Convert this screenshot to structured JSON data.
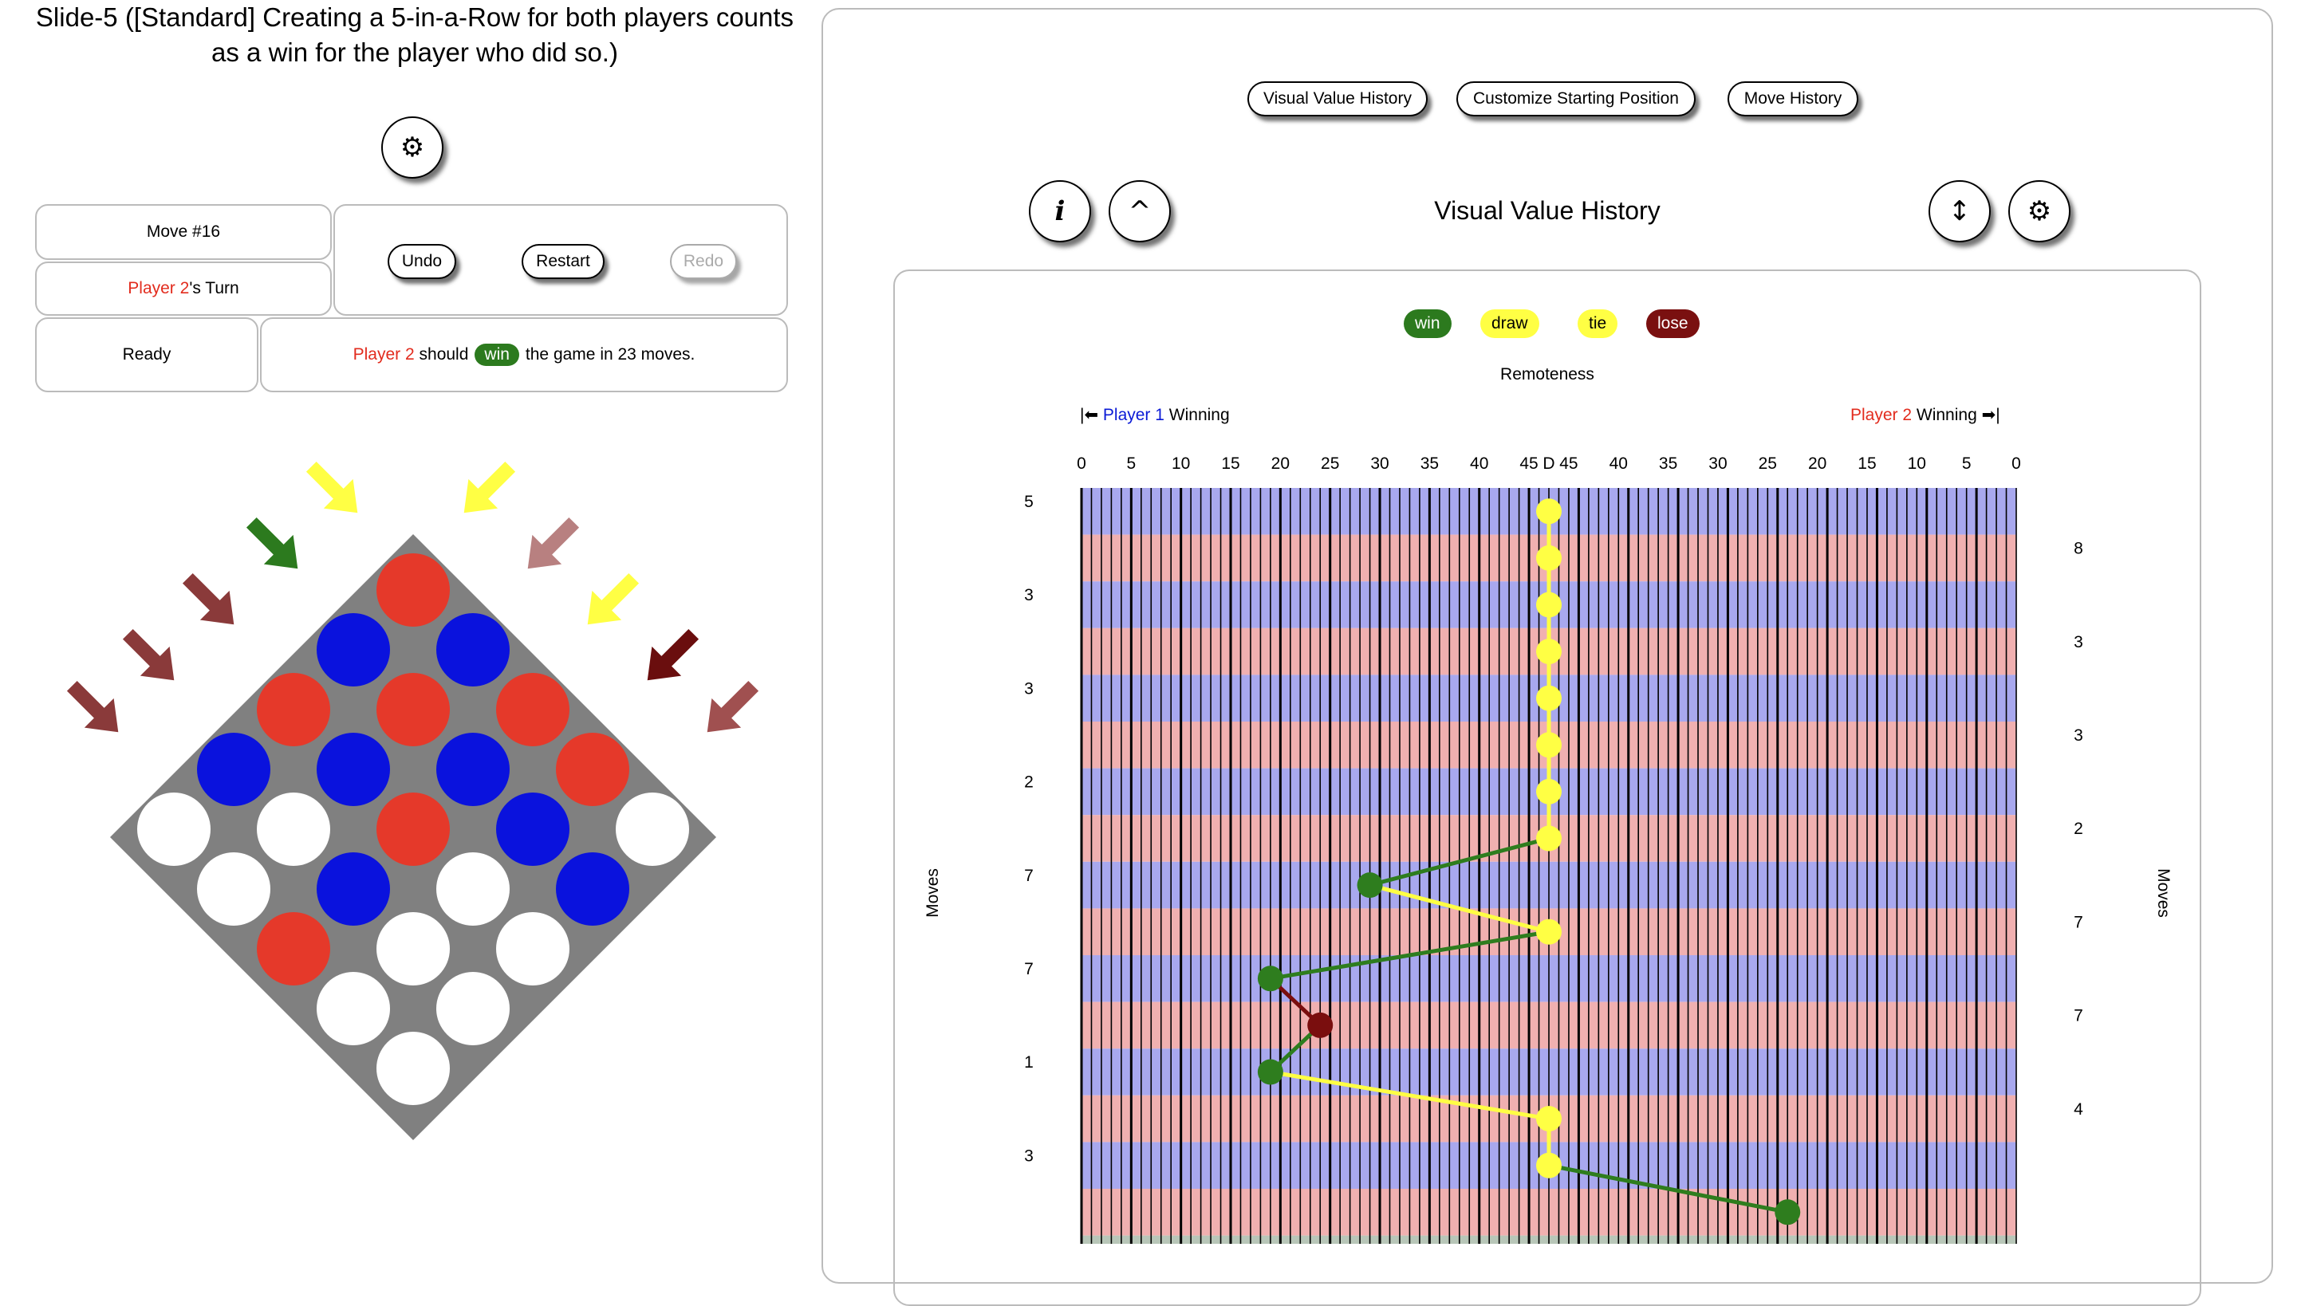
{
  "title": "Slide-5 ([Standard] Creating a 5-in-a-Row for both players counts as a win for the player who did so.)",
  "icons": {
    "settings": "⚙",
    "info": "𝒊",
    "collapse": "^",
    "flip": "↕"
  },
  "status": {
    "move": "Move #16",
    "turn_player": "Player 2",
    "turn_suffix": "'s Turn",
    "ready": "Ready",
    "pred_player": "Player 2",
    "pred_should": "should",
    "pred_value": "win",
    "pred_rest": "the game in 23 moves."
  },
  "controls": {
    "undo": "Undo",
    "restart": "Restart",
    "redo": "Redo"
  },
  "tabs": [
    "Visual Value History",
    "Customize Starting Position",
    "Move History"
  ],
  "vvh": {
    "heading": "Visual Value History",
    "legend": [
      {
        "label": "win",
        "bg": "#2c7a1e",
        "fg": "#ffffff"
      },
      {
        "label": "draw",
        "bg": "#ffff44",
        "fg": "#000000"
      },
      {
        "label": "tie",
        "bg": "#ffff44",
        "fg": "#000000"
      },
      {
        "label": "lose",
        "bg": "#7a1010",
        "fg": "#ffffff"
      }
    ],
    "remoteness_label": "Remoteness",
    "p1_label": "Player 1",
    "p2_label": "Player 2",
    "winning_label": "Winning",
    "left_arrow": "|⬅",
    "right_arrow": "➡|",
    "x_ticks": [
      "0",
      "5",
      "10",
      "15",
      "20",
      "25",
      "30",
      "35",
      "40",
      "45",
      "D",
      "45",
      "40",
      "35",
      "30",
      "25",
      "20",
      "15",
      "10",
      "5",
      "0"
    ],
    "left_moves": [
      "5",
      "3",
      "3",
      "2",
      "7",
      "7",
      "1",
      "3"
    ],
    "right_moves": [
      "8",
      "3",
      "3",
      "2",
      "7",
      "7",
      "4"
    ],
    "moves_label": "Moves"
  },
  "chart_data": {
    "type": "scatter",
    "title": "Visual Value History",
    "xlabel": "Remoteness",
    "ylabel": "Moves",
    "x_axis": "remoteness, left half = Player 1 winning (0..45), center D = draw, right half = Player 2 winning (45..0)",
    "positions": [
      {
        "row": 1,
        "value": "draw",
        "remoteness": "D"
      },
      {
        "row": 2,
        "value": "draw",
        "remoteness": "D"
      },
      {
        "row": 3,
        "value": "draw",
        "remoteness": "D"
      },
      {
        "row": 4,
        "value": "draw",
        "remoteness": "D"
      },
      {
        "row": 5,
        "value": "draw",
        "remoteness": "D"
      },
      {
        "row": 6,
        "value": "draw",
        "remoteness": "D"
      },
      {
        "row": 7,
        "value": "draw",
        "remoteness": "D"
      },
      {
        "row": 8,
        "value": "draw",
        "remoteness": "D"
      },
      {
        "row": 9,
        "value": "win",
        "side": "P1",
        "remoteness": 29
      },
      {
        "row": 10,
        "value": "draw",
        "remoteness": "D"
      },
      {
        "row": 11,
        "value": "win",
        "side": "P1",
        "remoteness": 19
      },
      {
        "row": 12,
        "value": "lose",
        "side": "P1",
        "remoteness": 24
      },
      {
        "row": 13,
        "value": "win",
        "side": "P1",
        "remoteness": 19
      },
      {
        "row": 14,
        "value": "draw",
        "remoteness": "D"
      },
      {
        "row": 15,
        "value": "draw",
        "remoteness": "D"
      },
      {
        "row": 16,
        "value": "win",
        "side": "P2",
        "remoteness": 23
      }
    ],
    "grid": true
  },
  "board": {
    "cells": [
      "red",
      "blue",
      "blue",
      "red",
      "red",
      "red",
      "blue",
      "blue",
      "blue",
      "red",
      "white",
      "white",
      "red",
      "blue",
      "white",
      "white",
      "blue",
      "white",
      "blue",
      "red",
      "white",
      "white",
      "white",
      "white",
      "white"
    ],
    "arrows": [
      "#8a3a3a",
      "#8a3a3a",
      "#8a3a3a",
      "#2c7a1e",
      "#ffff44",
      "#ffff44",
      "#b88080",
      "#ffff44",
      "#6a0e0e",
      "#a05050"
    ]
  }
}
